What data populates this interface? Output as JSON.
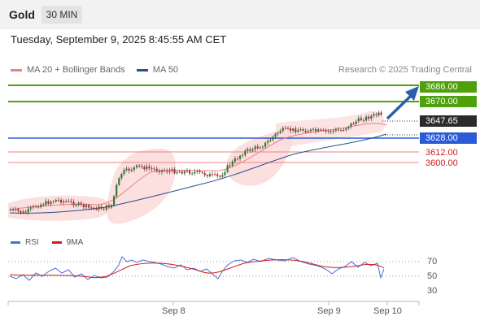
{
  "header": {
    "symbol": "Gold",
    "timeframe": "30 MIN",
    "datetime": "Tuesday, September 9, 2025 8:45:55 AM CET"
  },
  "legend": {
    "ma20_label": "MA 20 + Bollinger Bands",
    "ma50_label": "MA 50",
    "ma20_color": "#f08080",
    "ma50_color": "#2b4f8f",
    "credit": "Research © 2025 Trading Central"
  },
  "levels": {
    "r2": "3686.00",
    "r1": "3670.00",
    "last": "3647.65",
    "pivot": "3628.00",
    "s1": "3612.00",
    "s2": "3600.00"
  },
  "rsi": {
    "label": "RSI",
    "ma_label": "9MA",
    "color": "#4a6fd8",
    "ma_color": "#d21e1e",
    "levels": [
      "70",
      "50",
      "30"
    ]
  },
  "xaxis": {
    "labels": [
      "Sep 8",
      "Sep 9",
      "Sep 10"
    ]
  },
  "colors": {
    "resistance": "#4ea10a",
    "pivot": "#2b5bd6",
    "support": "#f08080",
    "up_candle": "#2e7d32",
    "down_candle": "#c62828",
    "arrow": "#2b5fa8"
  }
}
